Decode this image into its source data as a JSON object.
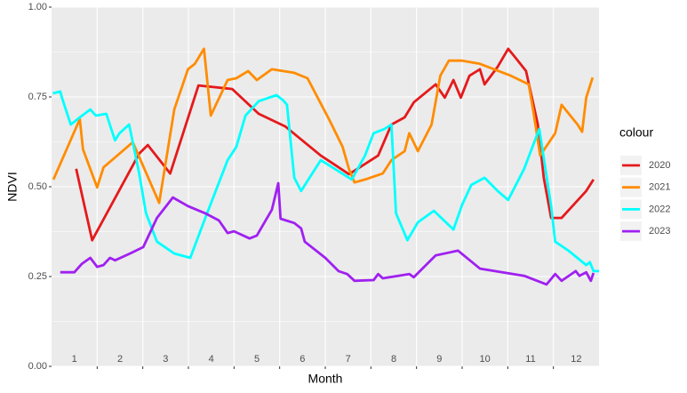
{
  "chart_data": {
    "type": "line",
    "x_label": "Month",
    "y_label": "NDVI",
    "legend_title": "colour",
    "xlim": [
      0.5,
      12.5
    ],
    "ylim": [
      0,
      1
    ],
    "yticks": [
      {
        "value": 0,
        "label": "0.00"
      },
      {
        "value": 0.25,
        "label": "0.25"
      },
      {
        "value": 0.5,
        "label": "0.50"
      },
      {
        "value": 0.75,
        "label": "0.75"
      },
      {
        "value": 1,
        "label": "1.00"
      }
    ],
    "month_positions": [
      1,
      2,
      3,
      4,
      5,
      6,
      7,
      8,
      9,
      10,
      11,
      12
    ],
    "month_labels": [
      "1",
      "2",
      "3",
      "4",
      "5",
      "6",
      "7",
      "8",
      "9",
      "10",
      "11",
      "12"
    ],
    "month_breaks": [
      1.5,
      2.5,
      3.5,
      4.5,
      5.5,
      6.5,
      7.5,
      8.5,
      9.5,
      10.5,
      11.5
    ],
    "grid": true,
    "legend": "right",
    "series": [
      {
        "name": "2020",
        "color": "#e41a1c",
        "x": [
          1.04,
          1.39,
          2.42,
          2.61,
          3.1,
          3.72,
          4.46,
          5.04,
          5.62,
          6.4,
          7.02,
          7.66,
          7.95,
          8.24,
          8.44,
          8.92,
          9.12,
          9.31,
          9.47,
          9.66,
          9.89,
          9.99,
          10.28,
          10.51,
          10.67,
          10.9,
          11.16,
          11.29,
          11.45,
          11.68,
          12.22,
          12.38
        ],
        "values": [
          0.55,
          0.351,
          0.592,
          0.616,
          0.537,
          0.782,
          0.772,
          0.703,
          0.668,
          0.587,
          0.535,
          0.587,
          0.673,
          0.693,
          0.735,
          0.785,
          0.748,
          0.797,
          0.748,
          0.809,
          0.827,
          0.785,
          0.834,
          0.884,
          0.859,
          0.822,
          0.673,
          0.524,
          0.413,
          0.413,
          0.488,
          0.52
        ]
      },
      {
        "name": "2021",
        "color": "#ff8c00",
        "x": [
          0.54,
          1.12,
          1.19,
          1.5,
          1.64,
          2.28,
          2.86,
          3.19,
          3.49,
          3.64,
          3.84,
          3.99,
          4.36,
          4.55,
          4.81,
          5.0,
          5.33,
          5.82,
          6.11,
          6.59,
          6.88,
          7.02,
          7.14,
          7.37,
          7.76,
          7.95,
          8.24,
          8.34,
          8.53,
          8.83,
          9.02,
          9.21,
          9.5,
          9.89,
          10.57,
          10.96,
          11.06,
          11.21,
          11.54,
          11.68,
          12.03,
          12.13,
          12.22,
          12.36
        ],
        "values": [
          0.52,
          0.688,
          0.604,
          0.498,
          0.554,
          0.624,
          0.455,
          0.715,
          0.827,
          0.842,
          0.884,
          0.698,
          0.797,
          0.802,
          0.822,
          0.797,
          0.827,
          0.817,
          0.802,
          0.686,
          0.611,
          0.549,
          0.512,
          0.52,
          0.537,
          0.574,
          0.599,
          0.649,
          0.599,
          0.673,
          0.809,
          0.851,
          0.851,
          0.842,
          0.809,
          0.785,
          0.71,
          0.587,
          0.649,
          0.728,
          0.673,
          0.653,
          0.748,
          0.804
        ]
      },
      {
        "name": "2022",
        "color": "#00ffff",
        "x": [
          0.53,
          0.69,
          0.73,
          0.92,
          1.12,
          1.35,
          1.47,
          1.7,
          1.89,
          1.99,
          2.2,
          2.42,
          2.57,
          2.81,
          3.19,
          3.54,
          3.87,
          4.36,
          4.55,
          4.75,
          5.04,
          5.43,
          5.58,
          5.66,
          5.82,
          5.97,
          6.4,
          7.08,
          7.37,
          7.56,
          7.8,
          7.95,
          8.05,
          8.3,
          8.53,
          8.88,
          9.31,
          9.5,
          9.7,
          9.99,
          10.28,
          10.51,
          10.86,
          11.19,
          11.45,
          11.54,
          11.83,
          12.22,
          12.3,
          12.38,
          12.5
        ],
        "values": [
          0.76,
          0.765,
          0.747,
          0.673,
          0.693,
          0.715,
          0.698,
          0.703,
          0.629,
          0.649,
          0.673,
          0.537,
          0.426,
          0.347,
          0.314,
          0.302,
          0.413,
          0.574,
          0.611,
          0.698,
          0.738,
          0.755,
          0.74,
          0.728,
          0.525,
          0.488,
          0.574,
          0.52,
          0.587,
          0.649,
          0.661,
          0.673,
          0.426,
          0.351,
          0.401,
          0.433,
          0.381,
          0.45,
          0.505,
          0.525,
          0.488,
          0.463,
          0.55,
          0.661,
          0.446,
          0.347,
          0.322,
          0.282,
          0.29,
          0.265,
          0.265
        ]
      },
      {
        "name": "2023",
        "color": "#a020f0",
        "x": [
          0.69,
          1.0,
          1.16,
          1.35,
          1.5,
          1.64,
          1.78,
          1.89,
          2.22,
          2.51,
          2.81,
          3.16,
          3.49,
          3.87,
          4.17,
          4.36,
          4.5,
          4.84,
          5.0,
          5.33,
          5.47,
          5.52,
          5.82,
          5.97,
          6.05,
          6.5,
          6.79,
          6.98,
          7.14,
          7.56,
          7.66,
          7.76,
          8.34,
          8.44,
          8.92,
          9.41,
          9.89,
          10.86,
          11.35,
          11.54,
          11.68,
          11.99,
          12.07,
          12.22,
          12.32,
          12.38
        ],
        "values": [
          0.262,
          0.262,
          0.285,
          0.302,
          0.277,
          0.282,
          0.302,
          0.295,
          0.314,
          0.332,
          0.413,
          0.47,
          0.446,
          0.426,
          0.406,
          0.371,
          0.376,
          0.356,
          0.364,
          0.436,
          0.51,
          0.411,
          0.399,
          0.384,
          0.347,
          0.302,
          0.265,
          0.257,
          0.238,
          0.24,
          0.257,
          0.245,
          0.257,
          0.248,
          0.309,
          0.322,
          0.272,
          0.252,
          0.228,
          0.257,
          0.238,
          0.265,
          0.252,
          0.262,
          0.238,
          0.26
        ]
      }
    ]
  }
}
